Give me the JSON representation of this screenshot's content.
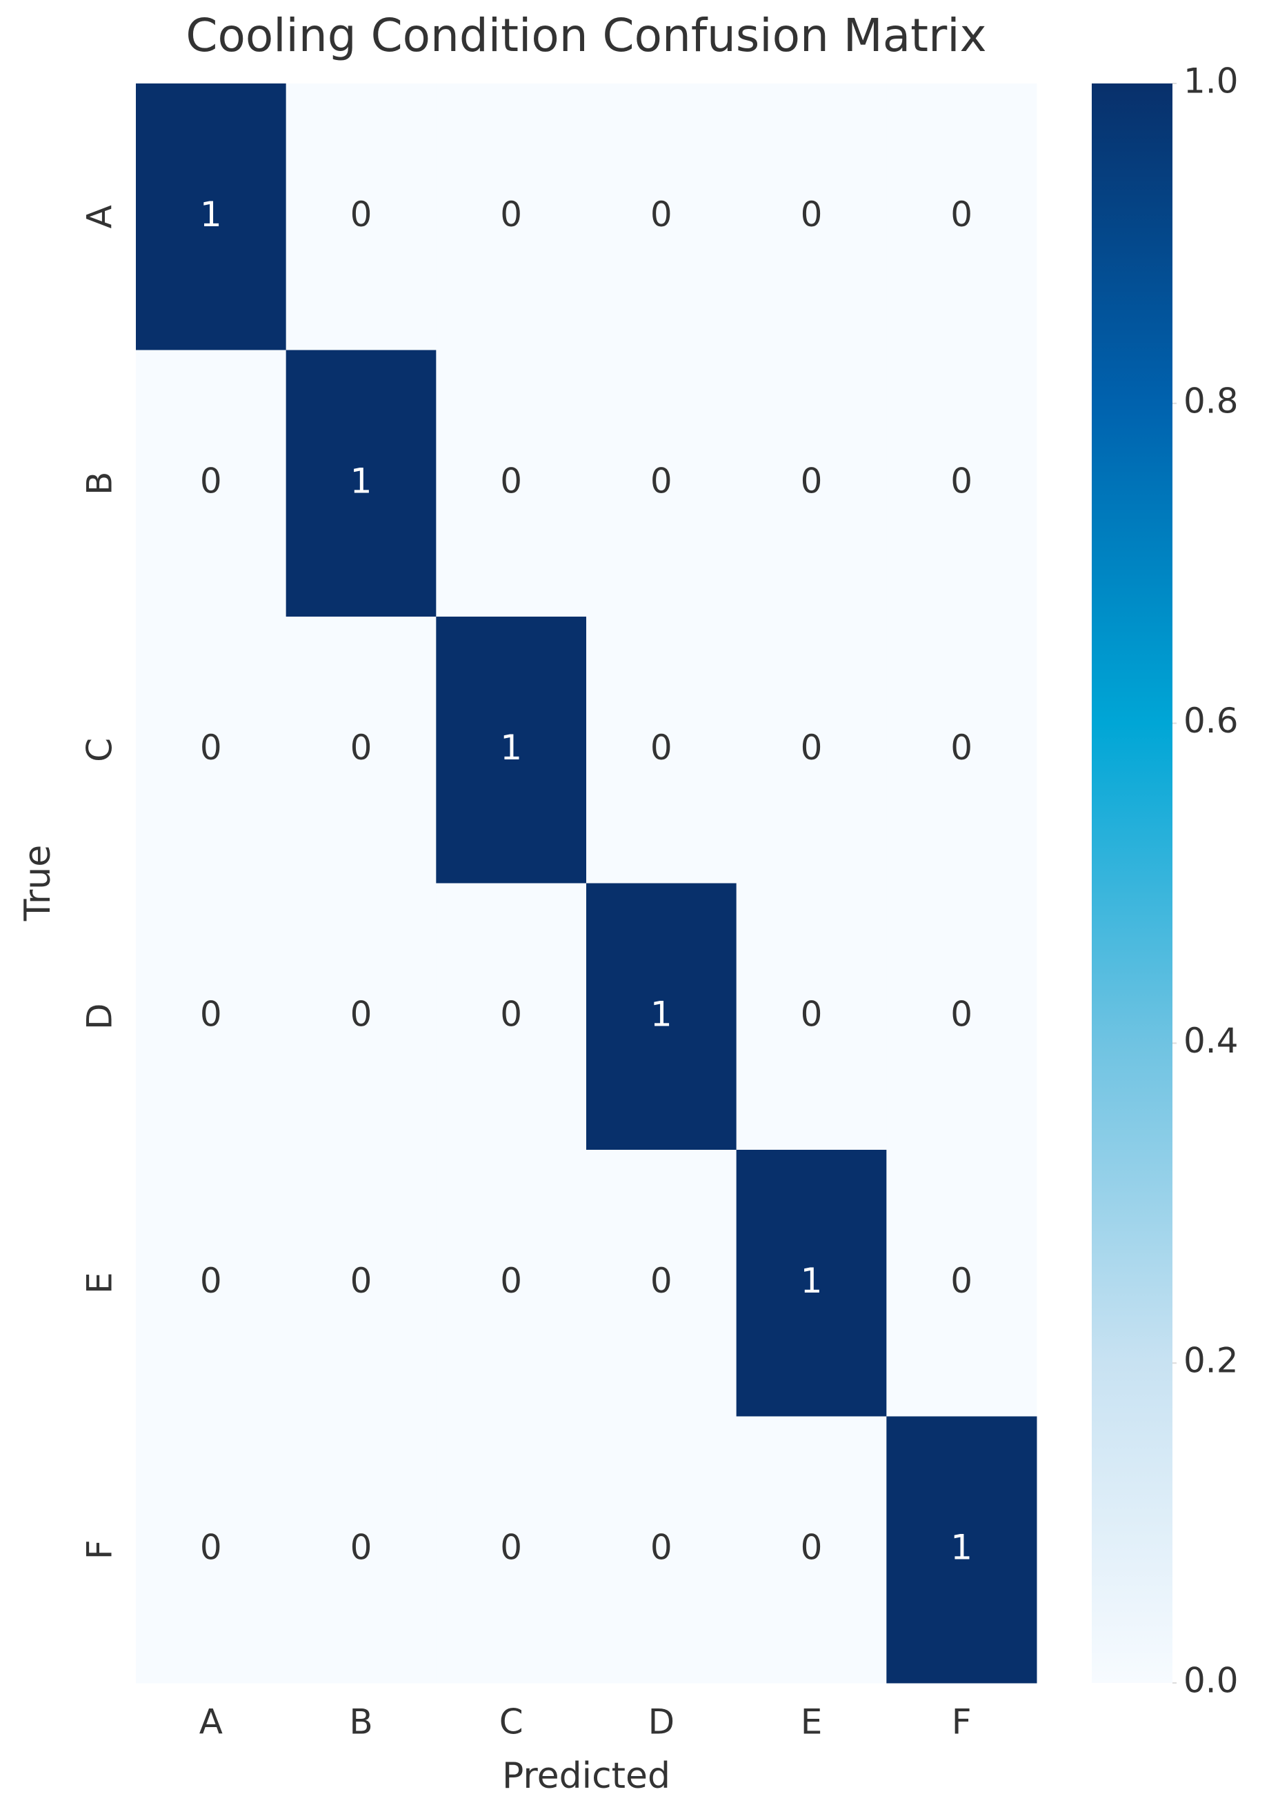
{
  "chart_data": {
    "type": "heatmap",
    "title": "Cooling Condition Confusion Matrix",
    "xlabel": "Predicted",
    "ylabel": "True",
    "x_categories": [
      "A",
      "B",
      "C",
      "D",
      "E",
      "F"
    ],
    "y_categories": [
      "A",
      "B",
      "C",
      "D",
      "E",
      "F"
    ],
    "values": [
      [
        1,
        0,
        0,
        0,
        0,
        0
      ],
      [
        0,
        1,
        0,
        0,
        0,
        0
      ],
      [
        0,
        0,
        1,
        0,
        0,
        0
      ],
      [
        0,
        0,
        0,
        1,
        0,
        0
      ],
      [
        0,
        0,
        0,
        0,
        1,
        0
      ],
      [
        0,
        0,
        0,
        0,
        0,
        1
      ]
    ],
    "colormap": [
      "#f7fbff",
      "#c8e2f2",
      "#6fc3e2",
      "#00a6d6",
      "#0062ae",
      "#08306b"
    ],
    "clim": [
      0,
      1
    ],
    "cticks": [
      {
        "value": 0,
        "label": "0.0"
      },
      0.2,
      0.4,
      0.6,
      0.8,
      {
        "value": 1,
        "label": "1.0"
      }
    ]
  }
}
